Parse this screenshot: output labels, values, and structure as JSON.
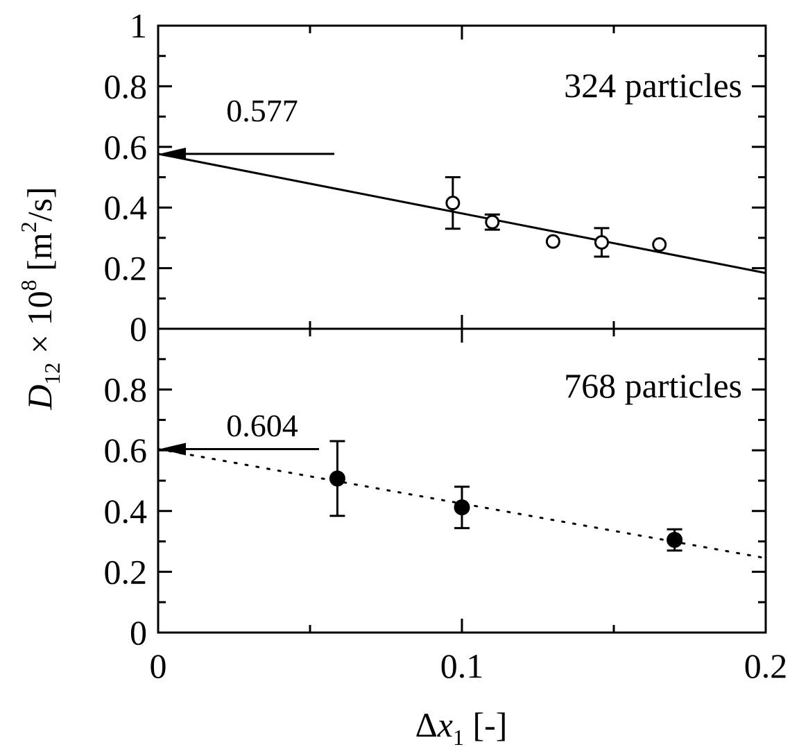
{
  "chart_data": {
    "type": "scatter",
    "xlabel_parts": [
      "Δ",
      "x",
      "1",
      " [-]"
    ],
    "ylabel_parts": [
      "D",
      "12",
      " × 10",
      "8",
      " [m",
      "2",
      "/s]"
    ],
    "xlim": [
      0,
      0.2
    ],
    "x_ticks": [
      "0",
      "0.1",
      "0.2"
    ],
    "panels": [
      {
        "label": "324 particles",
        "ylim": [
          0,
          1
        ],
        "y_ticks": [
          "0",
          "0.2",
          "0.4",
          "0.6",
          "0.8",
          "1"
        ],
        "marker": "open-circle",
        "fit_style": "solid",
        "fit": {
          "x": [
            0,
            0.2
          ],
          "y": [
            0.577,
            0.184
          ]
        },
        "intercept_label": "0.577",
        "intercept": 0.577,
        "points": [
          {
            "x": 0.097,
            "y": 0.415,
            "err": 0.085
          },
          {
            "x": 0.11,
            "y": 0.352,
            "err": 0.025
          },
          {
            "x": 0.13,
            "y": 0.288,
            "err": 0.0
          },
          {
            "x": 0.146,
            "y": 0.285,
            "err": 0.047
          },
          {
            "x": 0.165,
            "y": 0.278,
            "err": 0.0
          }
        ]
      },
      {
        "label": "768 particles",
        "ylim": [
          0,
          1
        ],
        "y_ticks": [
          "0",
          "0.2",
          "0.4",
          "0.6",
          "0.8"
        ],
        "marker": "filled-circle",
        "fit_style": "dotted",
        "fit": {
          "x": [
            0,
            0.2
          ],
          "y": [
            0.604,
            0.245
          ]
        },
        "intercept_label": "0.604",
        "intercept": 0.604,
        "points": [
          {
            "x": 0.059,
            "y": 0.507,
            "err": 0.123
          },
          {
            "x": 0.1,
            "y": 0.412,
            "err": 0.068
          },
          {
            "x": 0.17,
            "y": 0.305,
            "err": 0.035
          }
        ]
      }
    ]
  }
}
